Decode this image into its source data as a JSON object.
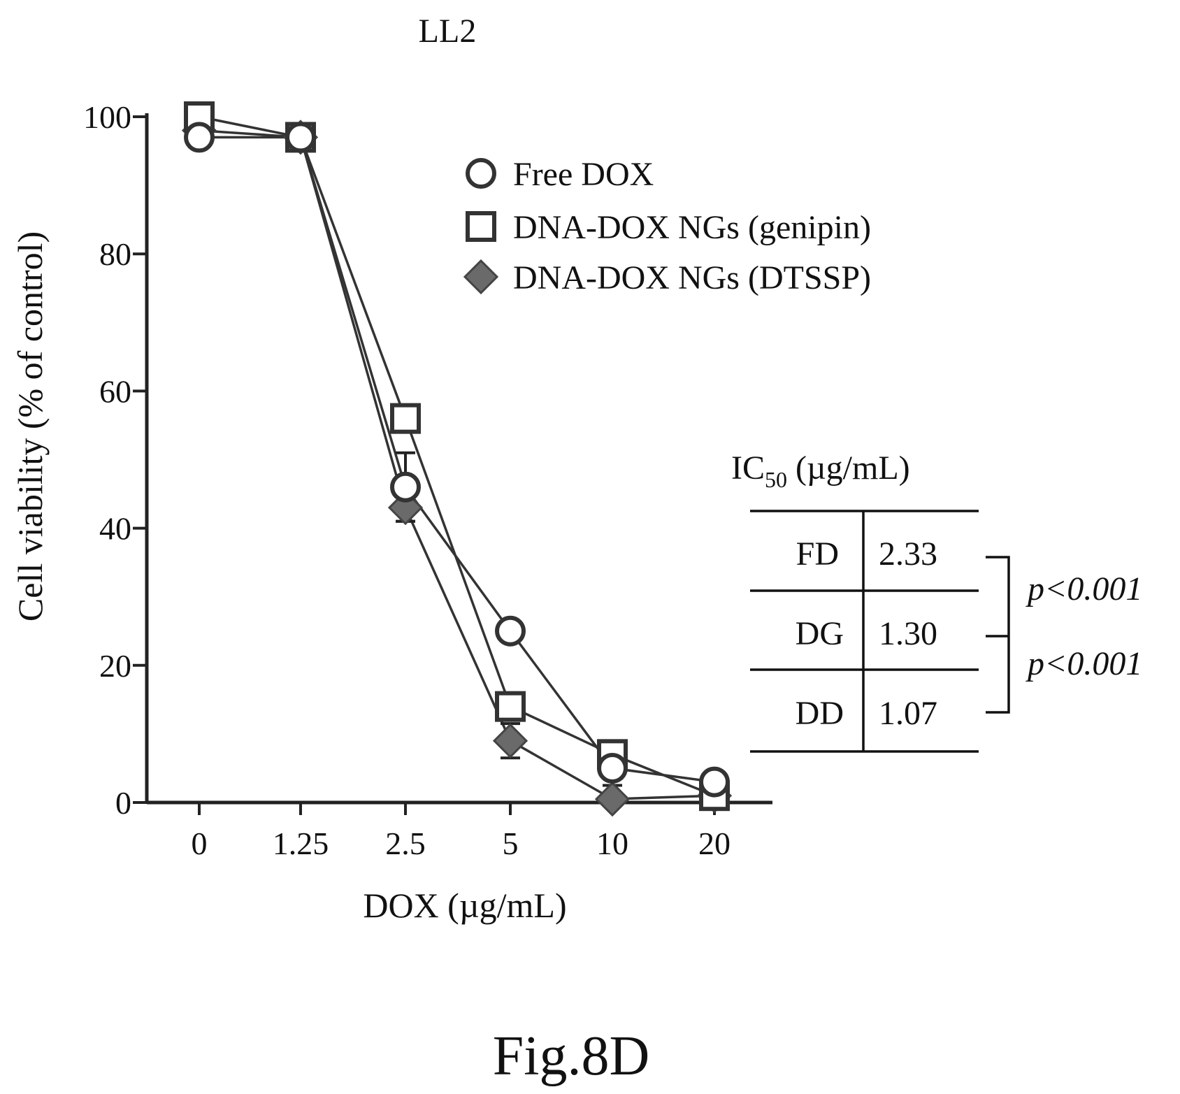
{
  "chart_data": {
    "type": "line",
    "title": "LL2",
    "xlabel": "DOX (µg/mL)",
    "ylabel": "Cell viability (% of control)",
    "categories": [
      "0",
      "1.25",
      "2.5",
      "5",
      "10",
      "20"
    ],
    "ylim": [
      0,
      100
    ],
    "yticks": [
      "0",
      "20",
      "40",
      "60",
      "80",
      "100"
    ],
    "legend_position": "top-right",
    "series": [
      {
        "name": "Free DOX",
        "marker": "circle",
        "values": [
          97,
          97,
          46,
          25,
          5,
          3
        ],
        "errors": [
          1.5,
          1.5,
          5,
          1,
          2.5,
          1
        ]
      },
      {
        "name": "DNA-DOX NGs (genipin)",
        "marker": "square",
        "values": [
          100,
          97,
          56,
          14,
          7,
          1
        ],
        "errors": [
          1,
          1.5,
          2,
          2,
          1,
          0.5
        ]
      },
      {
        "name": "DNA-DOX NGs (DTSSP)",
        "marker": "diamond",
        "values": [
          98,
          97,
          43,
          9,
          0.5,
          1
        ],
        "errors": [
          2.5,
          1.5,
          2,
          2.5,
          0.5,
          0.5
        ]
      }
    ],
    "ic50_table": {
      "header_main": "IC",
      "header_sub": "50",
      "header_unit": " (µg/mL)",
      "rows": [
        {
          "label": "FD",
          "value": "2.33"
        },
        {
          "label": "DG",
          "value": "1.30"
        },
        {
          "label": "DD",
          "value": "1.07"
        }
      ],
      "pvalues": [
        "p<0.001",
        "p<0.001"
      ]
    }
  },
  "figure_label": "Fig.8D"
}
